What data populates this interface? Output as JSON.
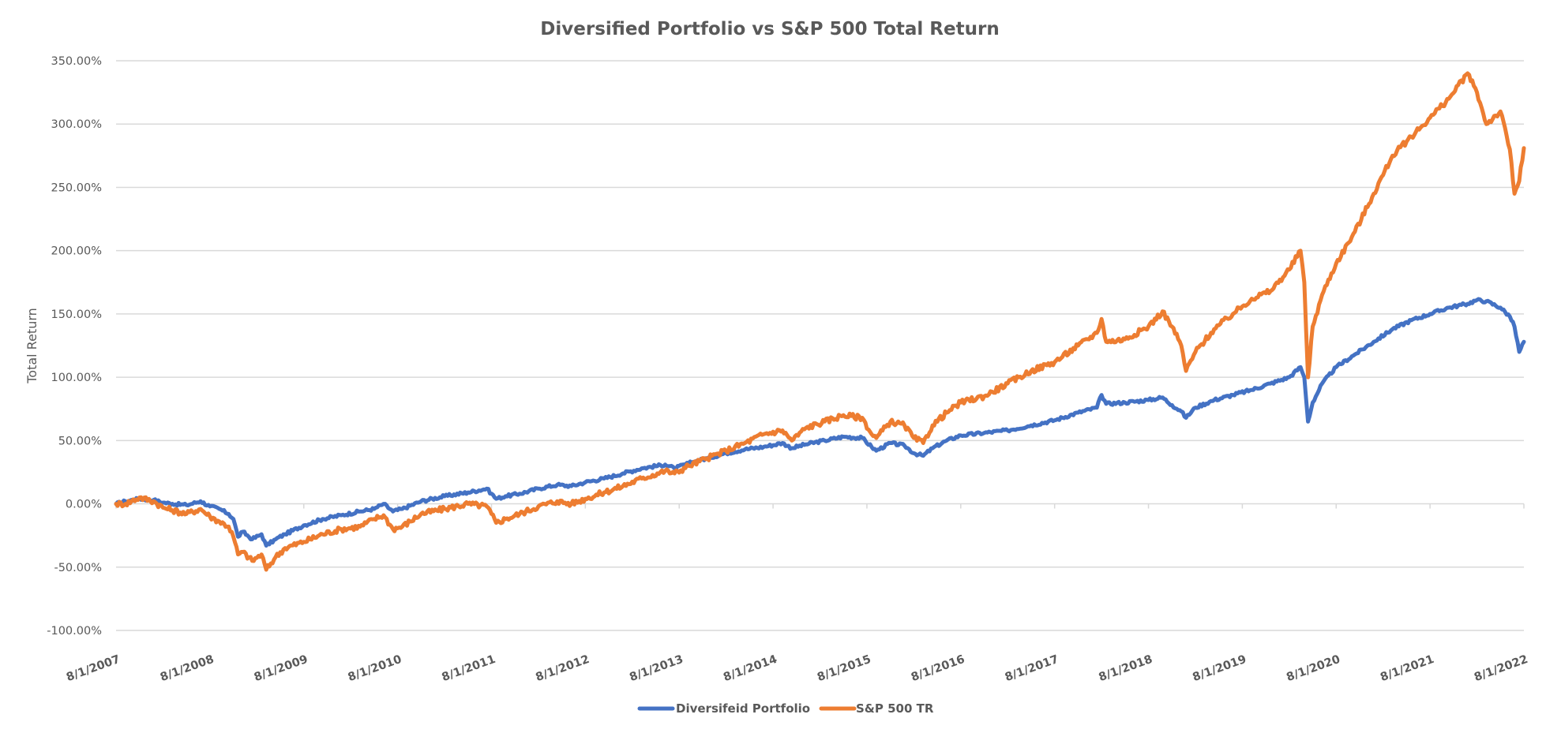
{
  "chart_data": {
    "type": "line",
    "title": "Diversified Portfolio vs S&P 500 Total Return",
    "xlabel": "",
    "ylabel": "Total Return",
    "x_unit": "years since 8/1/2007",
    "xlim": [
      0,
      15
    ],
    "ylim": [
      -100,
      350
    ],
    "y_ticks": [
      -100,
      -50,
      0,
      50,
      100,
      150,
      200,
      250,
      300,
      350
    ],
    "y_tick_labels": [
      "-100.00%",
      "-50.00%",
      "0.00%",
      "50.00%",
      "100.00%",
      "150.00%",
      "200.00%",
      "250.00%",
      "300.00%",
      "350.00%"
    ],
    "x_tick_labels": [
      "8/1/2007",
      "8/1/2008",
      "8/1/2009",
      "8/1/2010",
      "8/1/2011",
      "8/1/2012",
      "8/1/2013",
      "8/1/2014",
      "8/1/2015",
      "8/1/2016",
      "8/1/2017",
      "8/1/2018",
      "8/1/2019",
      "8/1/2020",
      "8/1/2021",
      "8/1/2022"
    ],
    "grid": true,
    "legend_position": "bottom",
    "series": [
      {
        "name": "Diversifeid Portfolio",
        "color": "#4472C4",
        "x": [
          0,
          0.1,
          0.25,
          0.4,
          0.5,
          0.6,
          0.75,
          0.9,
          1.0,
          1.1,
          1.2,
          1.25,
          1.3,
          1.35,
          1.45,
          1.55,
          1.6,
          1.7,
          1.8,
          2.0,
          2.2,
          2.4,
          2.6,
          2.75,
          2.85,
          2.95,
          3.05,
          3.25,
          3.5,
          3.75,
          3.95,
          4.0,
          4.05,
          4.15,
          4.3,
          4.5,
          4.7,
          4.85,
          5.0,
          5.2,
          5.4,
          5.6,
          5.85,
          5.95,
          6.1,
          6.3,
          6.5,
          6.7,
          6.9,
          7.1,
          7.2,
          7.35,
          7.55,
          7.75,
          7.95,
          8.05,
          8.1,
          8.25,
          8.4,
          8.5,
          8.6,
          8.7,
          8.85,
          9.0,
          9.25,
          9.5,
          9.75,
          10.0,
          10.25,
          10.45,
          10.5,
          10.55,
          10.75,
          11.0,
          11.15,
          11.25,
          11.35,
          11.4,
          11.5,
          11.7,
          11.9,
          12.1,
          12.3,
          12.5,
          12.62,
          12.66,
          12.7,
          12.75,
          12.85,
          13.0,
          13.2,
          13.4,
          13.6,
          13.8,
          14.0,
          14.2,
          14.4,
          14.5,
          14.6,
          14.75,
          14.85,
          14.9,
          14.95,
          15.0
        ],
        "values": [
          0,
          2,
          4,
          3,
          1,
          0,
          -1,
          2,
          -2,
          -4,
          -8,
          -12,
          -26,
          -22,
          -28,
          -24,
          -33,
          -28,
          -24,
          -17,
          -12,
          -9,
          -6,
          -4,
          0,
          -6,
          -4,
          2,
          6,
          9,
          12,
          8,
          4,
          6,
          8,
          12,
          15,
          14,
          17,
          20,
          24,
          28,
          31,
          28,
          32,
          36,
          40,
          43,
          45,
          48,
          44,
          47,
          50,
          53,
          52,
          45,
          42,
          48,
          46,
          40,
          38,
          44,
          50,
          54,
          56,
          58,
          62,
          66,
          72,
          76,
          86,
          79,
          80,
          82,
          84,
          78,
          73,
          68,
          76,
          82,
          86,
          90,
          95,
          100,
          108,
          100,
          65,
          80,
          95,
          108,
          118,
          128,
          138,
          145,
          150,
          155,
          158,
          161,
          160,
          155,
          148,
          140,
          120,
          128
        ]
      },
      {
        "name": "S&P 500 TR",
        "color": "#ED7D31",
        "x": [
          0,
          0.1,
          0.25,
          0.4,
          0.5,
          0.6,
          0.75,
          0.9,
          1.0,
          1.1,
          1.2,
          1.25,
          1.3,
          1.35,
          1.45,
          1.55,
          1.6,
          1.7,
          1.8,
          2.0,
          2.2,
          2.4,
          2.6,
          2.75,
          2.85,
          2.95,
          3.05,
          3.25,
          3.5,
          3.75,
          3.95,
          4.0,
          4.05,
          4.15,
          4.3,
          4.5,
          4.7,
          4.85,
          5.0,
          5.2,
          5.4,
          5.6,
          5.85,
          5.95,
          6.1,
          6.3,
          6.5,
          6.7,
          6.9,
          7.1,
          7.2,
          7.35,
          7.55,
          7.75,
          7.95,
          8.05,
          8.1,
          8.25,
          8.4,
          8.5,
          8.6,
          8.7,
          8.85,
          9.0,
          9.25,
          9.5,
          9.75,
          10.0,
          10.25,
          10.45,
          10.5,
          10.55,
          10.75,
          11.0,
          11.15,
          11.25,
          11.35,
          11.4,
          11.5,
          11.7,
          11.9,
          12.1,
          12.3,
          12.5,
          12.62,
          12.66,
          12.7,
          12.75,
          12.85,
          13.0,
          13.2,
          13.4,
          13.6,
          13.8,
          14.0,
          14.2,
          14.4,
          14.5,
          14.6,
          14.75,
          14.85,
          14.9,
          14.95,
          15.0
        ],
        "values": [
          0,
          0,
          5,
          2,
          -3,
          -5,
          -8,
          -4,
          -10,
          -14,
          -18,
          -26,
          -40,
          -38,
          -45,
          -40,
          -52,
          -42,
          -35,
          -30,
          -24,
          -20,
          -18,
          -12,
          -9,
          -20,
          -18,
          -8,
          -4,
          0,
          -2,
          -8,
          -15,
          -12,
          -8,
          -2,
          2,
          0,
          4,
          9,
          14,
          20,
          26,
          24,
          30,
          36,
          42,
          48,
          55,
          58,
          50,
          60,
          65,
          70,
          68,
          55,
          52,
          65,
          62,
          52,
          48,
          62,
          72,
          80,
          85,
          95,
          105,
          112,
          125,
          135,
          146,
          128,
          130,
          140,
          152,
          140,
          125,
          105,
          120,
          138,
          150,
          162,
          168,
          185,
          200,
          175,
          100,
          140,
          165,
          190,
          215,
          245,
          275,
          290,
          305,
          320,
          340,
          325,
          300,
          310,
          280,
          245,
          255,
          281
        ]
      }
    ]
  }
}
